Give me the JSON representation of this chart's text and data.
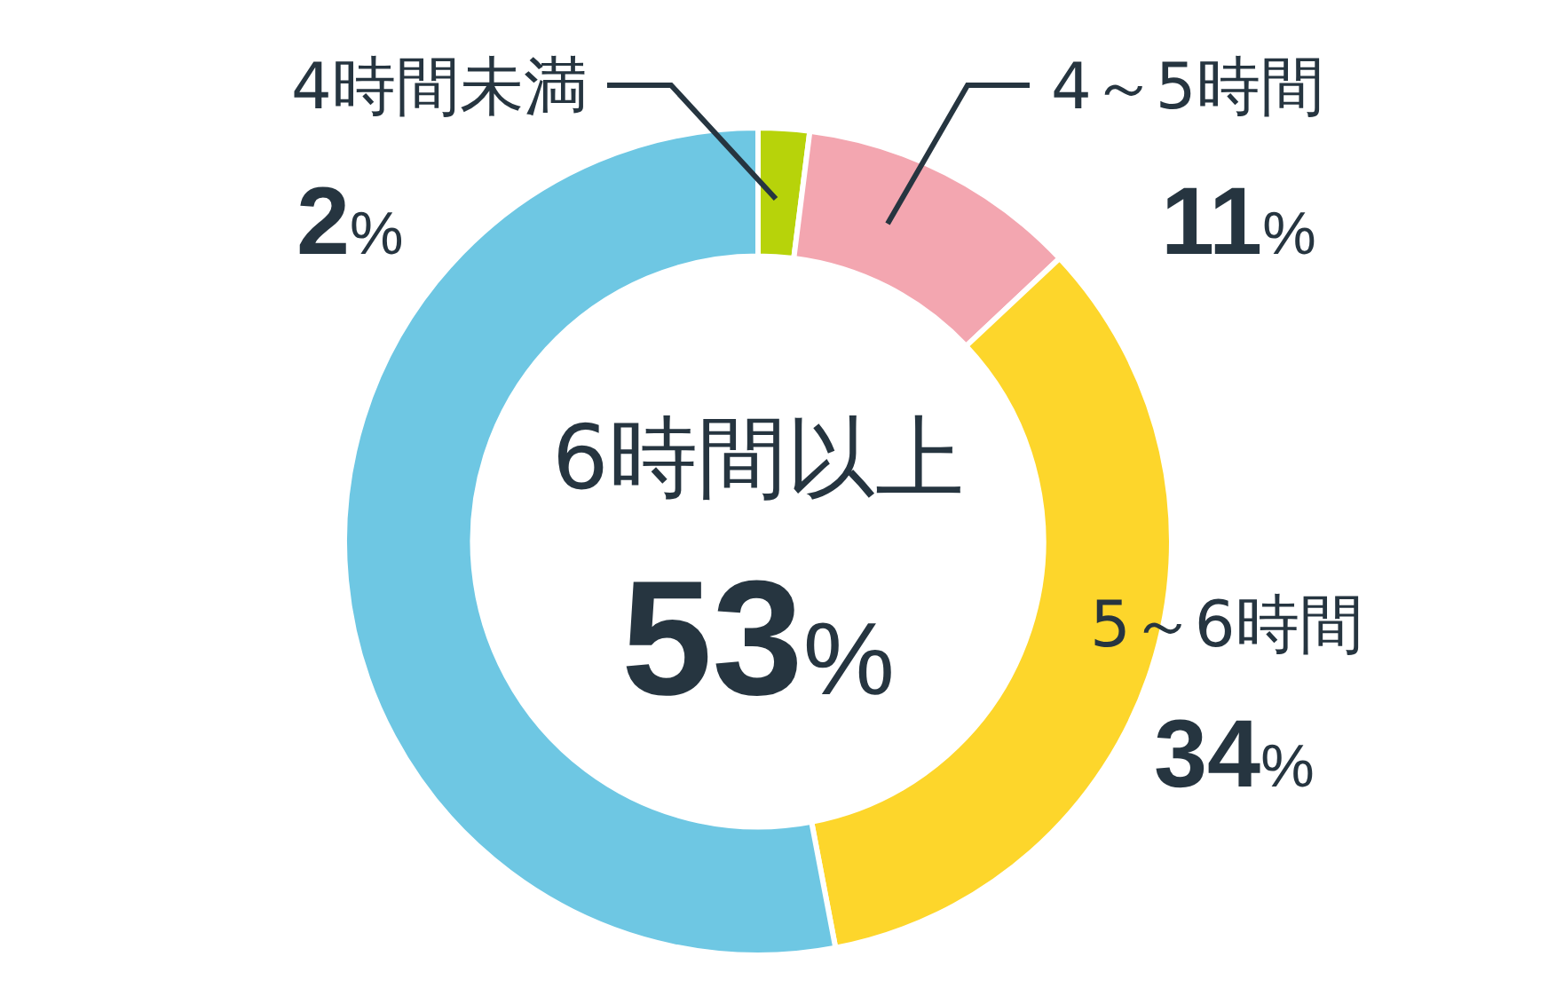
{
  "chart_data": {
    "type": "donut",
    "categories": [
      "4時間未満",
      "4～5時間",
      "5～6時間",
      "6時間以上"
    ],
    "values": [
      2,
      11,
      34,
      53
    ],
    "colors": [
      "#b7d30a",
      "#f3a6b0",
      "#fdd62b",
      "#6ec7e3"
    ],
    "value_labels": [
      "2%",
      "11%",
      "34%",
      "53%"
    ]
  }
}
